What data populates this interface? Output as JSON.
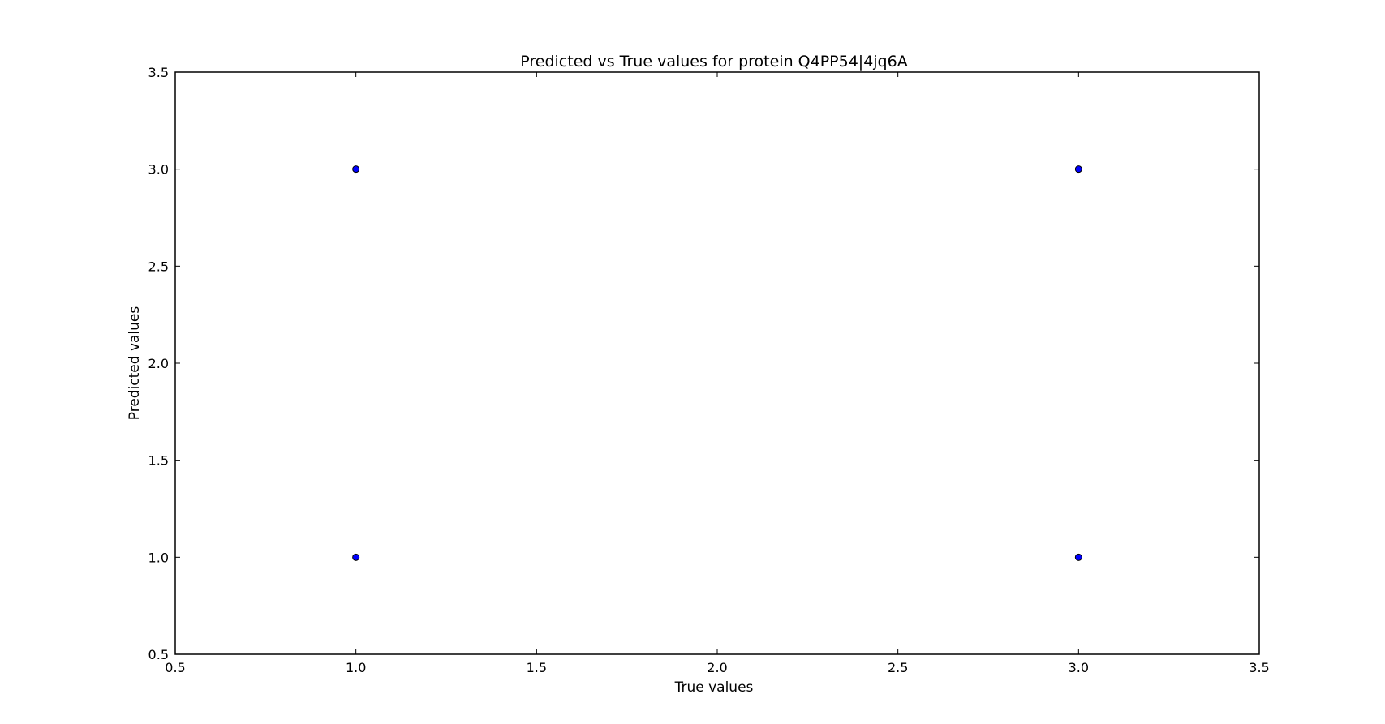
{
  "chart_data": {
    "type": "scatter",
    "title": "Predicted vs True values for protein Q4PP54|4jq6A",
    "xlabel": "True values",
    "ylabel": "Predicted values",
    "xlim": [
      0.5,
      3.5
    ],
    "ylim": [
      0.5,
      3.5
    ],
    "xticks": [
      "0.5",
      "1.0",
      "1.5",
      "2.0",
      "2.5",
      "3.0",
      "3.5"
    ],
    "yticks": [
      "0.5",
      "1.0",
      "1.5",
      "2.0",
      "2.5",
      "3.0",
      "3.5"
    ],
    "grid": false,
    "points": [
      {
        "x": 1.0,
        "y": 3.0
      },
      {
        "x": 3.0,
        "y": 3.0
      },
      {
        "x": 1.0,
        "y": 1.0
      },
      {
        "x": 3.0,
        "y": 1.0
      }
    ],
    "marker_color": "#0000ff",
    "marker_edge_color": "#000000"
  }
}
